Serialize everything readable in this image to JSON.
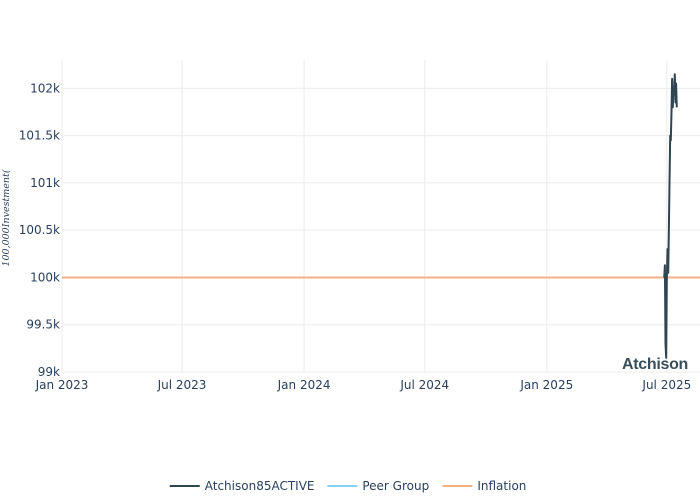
{
  "chart_data": {
    "type": "line",
    "title": "",
    "xlabel": "",
    "ylabel": "100,000Investment(",
    "x_range": [
      "2023-01-01",
      "2025-08-20"
    ],
    "ylim": [
      99000,
      102300
    ],
    "x_ticks": [
      {
        "date": "2023-01-01",
        "label": "Jan 2023"
      },
      {
        "date": "2023-07-01",
        "label": "Jul 2023"
      },
      {
        "date": "2024-01-01",
        "label": "Jan 2024"
      },
      {
        "date": "2024-07-01",
        "label": "Jul 2024"
      },
      {
        "date": "2025-01-01",
        "label": "Jan 2025"
      },
      {
        "date": "2025-07-01",
        "label": "Jul 2025"
      }
    ],
    "y_ticks": [
      {
        "value": 99000,
        "label": "99k"
      },
      {
        "value": 99500,
        "label": "99.5k"
      },
      {
        "value": 100000,
        "label": "100k"
      },
      {
        "value": 100500,
        "label": "100.5k"
      },
      {
        "value": 101000,
        "label": "101k"
      },
      {
        "value": 101500,
        "label": "101.5k"
      },
      {
        "value": 102000,
        "label": "102k"
      }
    ],
    "grid": true,
    "legend_position": "bottom-center",
    "watermark": "Atchison",
    "series": [
      {
        "name": "Atchison85ACTIVE",
        "color": "#2f4550",
        "points": [
          [
            "2025-06-27",
            100000
          ],
          [
            "2025-06-28",
            100130
          ],
          [
            "2025-06-29",
            99300
          ],
          [
            "2025-06-30",
            99150
          ],
          [
            "2025-07-01",
            99950
          ],
          [
            "2025-07-02",
            100300
          ],
          [
            "2025-07-03",
            100050
          ],
          [
            "2025-07-04",
            100450
          ],
          [
            "2025-07-05",
            101000
          ],
          [
            "2025-07-06",
            101500
          ],
          [
            "2025-07-07",
            101450
          ],
          [
            "2025-07-08",
            101750
          ],
          [
            "2025-07-09",
            102100
          ],
          [
            "2025-07-10",
            101800
          ],
          [
            "2025-07-11",
            102000
          ],
          [
            "2025-07-12",
            101950
          ],
          [
            "2025-07-13",
            102150
          ],
          [
            "2025-07-14",
            101850
          ],
          [
            "2025-07-15",
            102050
          ],
          [
            "2025-07-16",
            101800
          ]
        ]
      },
      {
        "name": "Peer Group",
        "color": "#87d3f2",
        "points": []
      },
      {
        "name": "Inflation",
        "color": "#f4b183",
        "points": [
          [
            "2023-01-01",
            100000
          ],
          [
            "2025-08-20",
            100000
          ]
        ]
      }
    ]
  }
}
